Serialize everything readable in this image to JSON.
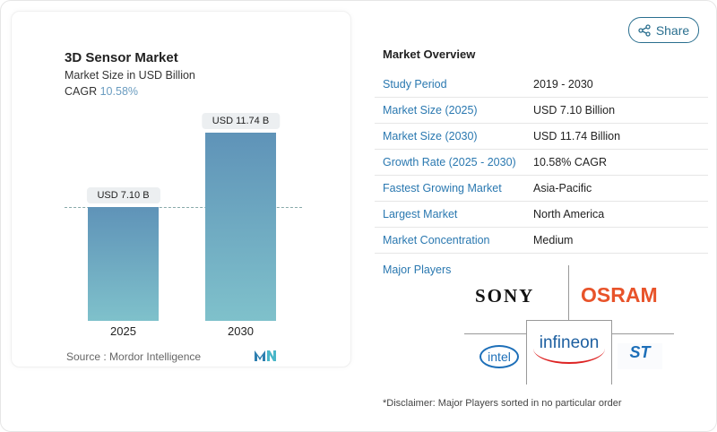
{
  "chart_data": {
    "type": "bar",
    "title": "3D Sensor Market",
    "subtitle": "Market Size in USD Billion",
    "cagr_label": "CAGR",
    "cagr_value": "10.58%",
    "categories": [
      "2025",
      "2030"
    ],
    "values": [
      7.1,
      11.74
    ],
    "data_labels": [
      "USD 7.10 B",
      "USD 11.74 B"
    ],
    "source": "Source :  Mordor Intelligence",
    "colors": {
      "bar_top": "#5f93b8",
      "bar_bottom": "#7fc1cb",
      "cagr": "#6a9cc0"
    }
  },
  "share": {
    "label": "Share",
    "icon": "share-icon"
  },
  "overview": {
    "title": "Market Overview",
    "rows": [
      {
        "label": "Study Period",
        "value": "2019 - 2030"
      },
      {
        "label": "Market Size (2025)",
        "value": "USD 7.10 Billion"
      },
      {
        "label": "Market Size (2030)",
        "value": "USD 11.74 Billion"
      },
      {
        "label": "Growth Rate (2025 - 2030)",
        "value": "10.58% CAGR"
      },
      {
        "label": "Fastest Growing Market",
        "value": "Asia-Pacific"
      },
      {
        "label": "Largest Market",
        "value": "North America"
      },
      {
        "label": "Market Concentration",
        "value": "Medium"
      }
    ],
    "major_players_label": "Major Players",
    "players": [
      "SONY",
      "OSRAM",
      "intel",
      "infineon",
      "ST"
    ],
    "disclaimer": "*Disclaimer: Major Players sorted in no particular order"
  }
}
